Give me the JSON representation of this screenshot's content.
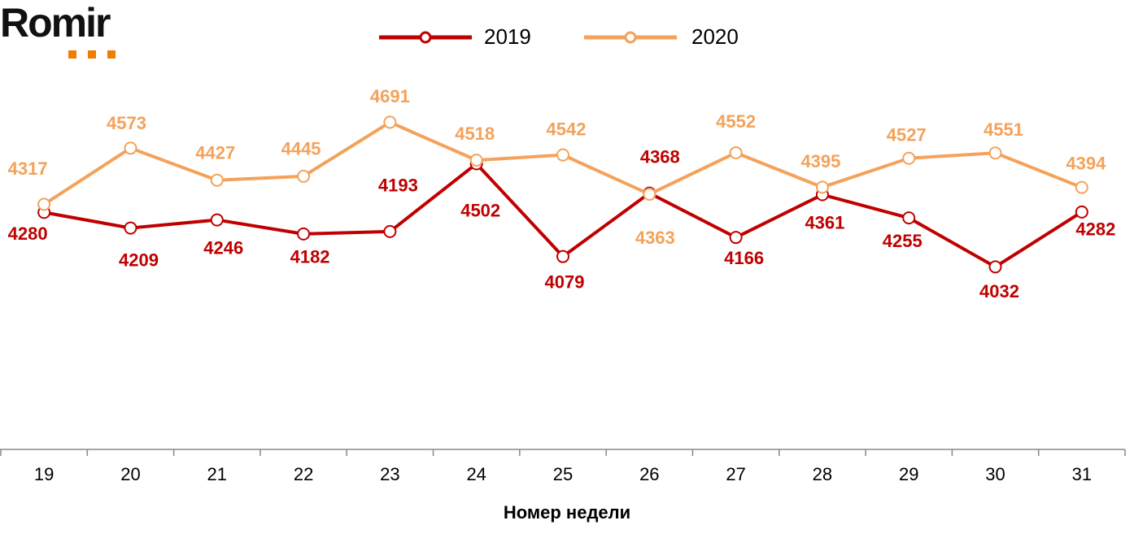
{
  "logo": "Romir",
  "chart_data": {
    "type": "line",
    "x_label": "Номер недели",
    "categories": [
      "19",
      "20",
      "21",
      "22",
      "23",
      "24",
      "25",
      "26",
      "27",
      "28",
      "29",
      "30",
      "31"
    ],
    "ylim": [
      3200,
      4900
    ],
    "legend": "top",
    "series": [
      {
        "name": "2019",
        "color": "#c00000",
        "values": [
          4280,
          4209,
          4246,
          4182,
          4193,
          4502,
          4079,
          4368,
          4166,
          4361,
          4255,
          4032,
          4282
        ]
      },
      {
        "name": "2020",
        "color": "#f4a25a",
        "values": [
          4317,
          4573,
          4427,
          4445,
          4691,
          4518,
          4542,
          4363,
          4552,
          4395,
          4527,
          4551,
          4394
        ]
      }
    ]
  }
}
